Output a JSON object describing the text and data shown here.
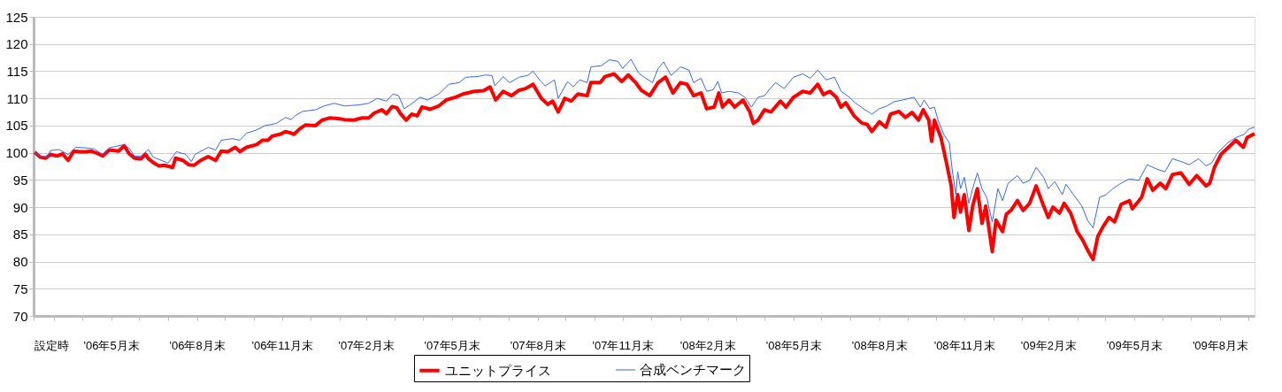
{
  "chart_data": {
    "type": "line",
    "xlim": [
      "2006-03-09",
      "2009-10-07"
    ],
    "xticks": [
      {
        "value": "2006-03-09",
        "label": "設定時"
      },
      {
        "value": "2006-03-31",
        "label": null
      },
      {
        "value": "2006-04-30",
        "label": null
      },
      {
        "value": "2006-05-31",
        "label": "'06年5月末"
      },
      {
        "value": "2006-06-30",
        "label": null
      },
      {
        "value": "2006-07-31",
        "label": null
      },
      {
        "value": "2006-08-31",
        "label": "'06年8月末"
      },
      {
        "value": "2006-09-30",
        "label": null
      },
      {
        "value": "2006-10-31",
        "label": null
      },
      {
        "value": "2006-11-30",
        "label": "'06年11月末"
      },
      {
        "value": "2006-12-31",
        "label": null
      },
      {
        "value": "2007-01-31",
        "label": null
      },
      {
        "value": "2007-02-28",
        "label": "'07年2月末"
      },
      {
        "value": "2007-03-31",
        "label": null
      },
      {
        "value": "2007-04-30",
        "label": null
      },
      {
        "value": "2007-05-31",
        "label": "'07年5月末"
      },
      {
        "value": "2007-06-30",
        "label": null
      },
      {
        "value": "2007-07-31",
        "label": null
      },
      {
        "value": "2007-08-31",
        "label": "'07年8月末"
      },
      {
        "value": "2007-09-30",
        "label": null
      },
      {
        "value": "2007-10-31",
        "label": null
      },
      {
        "value": "2007-11-30",
        "label": "'07年11月末"
      },
      {
        "value": "2007-12-31",
        "label": null
      },
      {
        "value": "2008-01-31",
        "label": null
      },
      {
        "value": "2008-02-29",
        "label": "'08年2月末"
      },
      {
        "value": "2008-03-31",
        "label": null
      },
      {
        "value": "2008-04-30",
        "label": null
      },
      {
        "value": "2008-05-31",
        "label": "'08年5月末"
      },
      {
        "value": "2008-06-30",
        "label": null
      },
      {
        "value": "2008-07-31",
        "label": null
      },
      {
        "value": "2008-08-31",
        "label": "'08年8月末"
      },
      {
        "value": "2008-09-30",
        "label": null
      },
      {
        "value": "2008-10-31",
        "label": null
      },
      {
        "value": "2008-11-30",
        "label": "'08年11月末"
      },
      {
        "value": "2008-12-31",
        "label": null
      },
      {
        "value": "2009-01-31",
        "label": null
      },
      {
        "value": "2009-02-28",
        "label": "'09年2月末"
      },
      {
        "value": "2009-03-31",
        "label": null
      },
      {
        "value": "2009-04-30",
        "label": null
      },
      {
        "value": "2009-05-31",
        "label": "'09年5月末"
      },
      {
        "value": "2009-06-30",
        "label": null
      },
      {
        "value": "2009-07-31",
        "label": null
      },
      {
        "value": "2009-08-31",
        "label": "'09年8月末"
      },
      {
        "value": "2009-09-30",
        "label": null
      }
    ],
    "ylim": [
      70,
      125
    ],
    "yticks": [
      70,
      75,
      80,
      85,
      90,
      95,
      100,
      105,
      110,
      115,
      120,
      125
    ],
    "grid": "y",
    "legend": "bottom",
    "series": [
      {
        "name": "ユニットプライス",
        "color": "#ff0000",
        "x": [
          "2006-03-10",
          "2006-03-16",
          "2006-03-22",
          "2006-03-27",
          "2006-04-03",
          "2006-04-09",
          "2006-04-15",
          "2006-04-21",
          "2006-04-28",
          "2006-05-04",
          "2006-05-10",
          "2006-05-16",
          "2006-05-22",
          "2006-05-29",
          "2006-06-08",
          "2006-06-14",
          "2006-06-19",
          "2006-06-25",
          "2006-07-02",
          "2006-07-07",
          "2006-07-10",
          "2006-07-16",
          "2006-07-21",
          "2006-07-27",
          "2006-08-05",
          "2006-08-08",
          "2006-08-16",
          "2006-08-22",
          "2006-08-28",
          "2006-09-04",
          "2006-09-12",
          "2006-09-20",
          "2006-09-26",
          "2006-10-03",
          "2006-10-11",
          "2006-10-16",
          "2006-10-23",
          "2006-11-03",
          "2006-11-09",
          "2006-11-15",
          "2006-11-20",
          "2006-11-28",
          "2006-12-04",
          "2006-12-10",
          "2006-12-13",
          "2006-12-19",
          "2006-12-25",
          "2007-01-05",
          "2007-01-12",
          "2007-01-20",
          "2007-01-29",
          "2007-02-05",
          "2007-02-15",
          "2007-02-24",
          "2007-03-03",
          "2007-03-09",
          "2007-03-17",
          "2007-03-22",
          "2007-03-28",
          "2007-04-02",
          "2007-04-06",
          "2007-04-12",
          "2007-04-18",
          "2007-04-24",
          "2007-04-29",
          "2007-05-08",
          "2007-05-17",
          "2007-05-25",
          "2007-06-04",
          "2007-06-12",
          "2007-06-24",
          "2007-07-04",
          "2007-07-11",
          "2007-07-17",
          "2007-07-25",
          "2007-08-03",
          "2007-08-11",
          "2007-08-18",
          "2007-08-26",
          "2007-09-04",
          "2007-09-11",
          "2007-09-16",
          "2007-09-22",
          "2007-09-29",
          "2007-10-06",
          "2007-10-13",
          "2007-10-23",
          "2007-10-27",
          "2007-11-06",
          "2007-11-11",
          "2007-11-21",
          "2007-11-29",
          "2007-12-06",
          "2007-12-14",
          "2007-12-20",
          "2007-12-29",
          "2008-01-07",
          "2008-01-15",
          "2008-01-23",
          "2008-01-31",
          "2008-02-07",
          "2008-02-14",
          "2008-02-22",
          "2008-02-28",
          "2008-03-07",
          "2008-03-12",
          "2008-03-16",
          "2008-03-23",
          "2008-03-29",
          "2008-04-07",
          "2008-04-14",
          "2008-04-18",
          "2008-04-23",
          "2008-04-30",
          "2008-05-07",
          "2008-05-17",
          "2008-05-23",
          "2008-05-31",
          "2008-06-10",
          "2008-06-18",
          "2008-06-26",
          "2008-07-02",
          "2008-07-09",
          "2008-07-16",
          "2008-07-21",
          "2008-07-26",
          "2008-08-04",
          "2008-08-12",
          "2008-08-18",
          "2008-08-23",
          "2008-08-31",
          "2008-09-07",
          "2008-09-12",
          "2008-09-21",
          "2008-09-28",
          "2008-10-05",
          "2008-10-12",
          "2008-10-17",
          "2008-10-23",
          "2008-10-26",
          "2008-10-29",
          "2008-11-05",
          "2008-11-11",
          "2008-11-16",
          "2008-11-19",
          "2008-11-23",
          "2008-11-26",
          "2008-11-30",
          "2008-12-05",
          "2008-12-09",
          "2008-12-14",
          "2008-12-19",
          "2008-12-23",
          "2008-12-30",
          "2009-01-03",
          "2009-01-10",
          "2009-01-14",
          "2009-01-19",
          "2009-01-26",
          "2009-02-01",
          "2009-02-08",
          "2009-02-15",
          "2009-02-23",
          "2009-02-28",
          "2009-03-05",
          "2009-03-12",
          "2009-03-17",
          "2009-03-24",
          "2009-03-31",
          "2009-04-06",
          "2009-04-12",
          "2009-04-17",
          "2009-04-22",
          "2009-04-28",
          "2009-05-04",
          "2009-05-10",
          "2009-05-17",
          "2009-05-26",
          "2009-05-29",
          "2009-06-08",
          "2009-06-14",
          "2009-06-20",
          "2009-06-28",
          "2009-07-04",
          "2009-07-11",
          "2009-07-20",
          "2009-07-29",
          "2009-08-06",
          "2009-08-16",
          "2009-08-20",
          "2009-08-25",
          "2009-09-01",
          "2009-09-09",
          "2009-09-17",
          "2009-09-25",
          "2009-09-29",
          "2009-10-07"
        ],
        "values": [
          100.1,
          99.2,
          99.0,
          99.7,
          99.4,
          99.8,
          98.6,
          100.3,
          100.2,
          100.2,
          100.3,
          99.9,
          99.4,
          100.5,
          100.3,
          101.3,
          99.9,
          99.0,
          98.9,
          99.7,
          98.9,
          98.1,
          97.6,
          97.7,
          97.3,
          99.0,
          98.6,
          97.8,
          97.7,
          98.6,
          99.3,
          98.6,
          100.3,
          100.2,
          101.0,
          100.2,
          101.0,
          101.5,
          102.3,
          102.3,
          103.1,
          103.4,
          103.9,
          103.6,
          103.4,
          104.4,
          105.1,
          105.0,
          106.0,
          106.4,
          106.3,
          106.1,
          106.0,
          106.4,
          106.4,
          107.3,
          107.9,
          107.2,
          108.5,
          108.3,
          107.2,
          106.0,
          107.1,
          106.8,
          108.4,
          108.0,
          108.6,
          109.7,
          110.2,
          110.8,
          111.3,
          111.4,
          112.1,
          109.7,
          111.3,
          110.5,
          111.5,
          111.8,
          112.6,
          110.0,
          108.9,
          109.5,
          107.5,
          110.0,
          109.5,
          110.8,
          110.5,
          112.9,
          112.9,
          114.0,
          114.5,
          113.1,
          114.3,
          112.9,
          111.5,
          110.5,
          112.9,
          113.9,
          111.0,
          112.9,
          112.6,
          110.5,
          111.0,
          108.1,
          108.4,
          111.0,
          108.4,
          109.7,
          108.4,
          109.7,
          107.6,
          105.4,
          106.0,
          107.9,
          107.5,
          109.5,
          108.4,
          110.2,
          111.3,
          111.0,
          112.6,
          110.7,
          111.3,
          110.2,
          108.4,
          109.2,
          106.8,
          105.5,
          105.2,
          103.9,
          105.7,
          104.7,
          107.1,
          107.6,
          106.5,
          107.4,
          106.0,
          107.9,
          106.0,
          102.1,
          106.0,
          102.8,
          98.1,
          93.9,
          88.1,
          92.3,
          89.1,
          92.3,
          85.7,
          90.2,
          93.4,
          87.0,
          90.2,
          81.8,
          87.6,
          85.5,
          88.7,
          89.4,
          91.2,
          89.4,
          90.7,
          93.9,
          90.2,
          88.1,
          90.0,
          88.9,
          90.7,
          88.9,
          85.5,
          83.9,
          81.8,
          80.4,
          84.6,
          86.5,
          88.1,
          87.3,
          90.5,
          91.2,
          89.7,
          91.8,
          95.2,
          93.1,
          94.4,
          93.4,
          96.0,
          96.3,
          94.2,
          95.8,
          93.9,
          94.4,
          97.3,
          99.7,
          101.0,
          102.3,
          101.0,
          102.8,
          103.5
        ]
      },
      {
        "name": "合成ベンチマーク",
        "color": "#3366ff",
        "x": [
          "2006-03-10",
          "2006-03-17",
          "2006-03-24",
          "2006-03-27",
          "2006-04-05",
          "2006-04-15",
          "2006-04-23",
          "2006-05-04",
          "2006-05-13",
          "2006-05-22",
          "2006-05-29",
          "2006-06-14",
          "2006-06-20",
          "2006-06-25",
          "2006-07-02",
          "2006-07-10",
          "2006-07-15",
          "2006-07-21",
          "2006-07-31",
          "2006-08-09",
          "2006-08-19",
          "2006-08-25",
          "2006-08-29",
          "2006-09-12",
          "2006-09-20",
          "2006-09-26",
          "2006-10-08",
          "2006-10-16",
          "2006-10-23",
          "2006-11-03",
          "2006-11-12",
          "2006-11-24",
          "2006-12-04",
          "2006-12-10",
          "2006-12-14",
          "2006-12-22",
          "2007-01-05",
          "2007-01-14",
          "2007-01-25",
          "2007-02-05",
          "2007-02-21",
          "2007-03-03",
          "2007-03-12",
          "2007-03-22",
          "2007-03-29",
          "2007-04-04",
          "2007-04-10",
          "2007-04-17",
          "2007-04-27",
          "2007-05-05",
          "2007-05-17",
          "2007-05-28",
          "2007-06-08",
          "2007-06-15",
          "2007-06-27",
          "2007-07-06",
          "2007-07-13",
          "2007-07-16",
          "2007-07-25",
          "2007-08-01",
          "2007-08-11",
          "2007-08-20",
          "2007-08-26",
          "2007-09-02",
          "2007-09-08",
          "2007-09-18",
          "2007-09-22",
          "2007-10-02",
          "2007-10-08",
          "2007-10-15",
          "2007-10-23",
          "2007-10-27",
          "2007-11-07",
          "2007-11-16",
          "2007-11-25",
          "2007-11-30",
          "2007-12-09",
          "2007-12-17",
          "2007-12-23",
          "2008-01-01",
          "2008-01-07",
          "2008-01-13",
          "2008-01-21",
          "2008-01-31",
          "2008-02-09",
          "2008-02-14",
          "2008-02-22",
          "2008-02-28",
          "2008-03-06",
          "2008-03-11",
          "2008-03-15",
          "2008-03-23",
          "2008-04-02",
          "2008-04-09",
          "2008-04-16",
          "2008-04-23",
          "2008-04-30",
          "2008-05-06",
          "2008-05-12",
          "2008-05-21",
          "2008-05-31",
          "2008-06-10",
          "2008-06-18",
          "2008-06-26",
          "2008-07-05",
          "2008-07-14",
          "2008-07-21",
          "2008-07-30",
          "2008-08-05",
          "2008-08-14",
          "2008-08-23",
          "2008-08-31",
          "2008-09-08",
          "2008-09-16",
          "2008-09-25",
          "2008-10-07",
          "2008-10-14",
          "2008-10-18",
          "2008-10-24",
          "2008-10-29",
          "2008-11-02",
          "2008-11-08",
          "2008-11-14",
          "2008-11-17",
          "2008-11-21",
          "2008-11-23",
          "2008-11-26",
          "2008-11-30",
          "2008-12-05",
          "2008-12-09",
          "2008-12-14",
          "2008-12-19",
          "2008-12-24",
          "2008-12-30",
          "2009-01-05",
          "2009-01-10",
          "2009-01-16",
          "2009-01-26",
          "2009-02-01",
          "2009-02-08",
          "2009-02-15",
          "2009-02-23",
          "2009-02-28",
          "2009-03-07",
          "2009-03-15",
          "2009-03-19",
          "2009-03-27",
          "2009-04-05",
          "2009-04-11",
          "2009-04-17",
          "2009-04-24",
          "2009-05-01",
          "2009-05-08",
          "2009-05-17",
          "2009-05-26",
          "2009-06-05",
          "2009-06-14",
          "2009-06-24",
          "2009-07-03",
          "2009-07-11",
          "2009-07-20",
          "2009-07-29",
          "2009-08-08",
          "2009-08-16",
          "2009-08-22",
          "2009-08-28",
          "2009-09-08",
          "2009-09-17",
          "2009-09-26",
          "2009-10-01",
          "2009-10-07"
        ],
        "values": [
          100.1,
          99.3,
          99.3,
          100.4,
          100.6,
          99.7,
          101.0,
          100.9,
          100.7,
          99.7,
          100.9,
          101.5,
          100.7,
          99.4,
          99.4,
          100.6,
          99.2,
          98.8,
          98.1,
          100.2,
          99.7,
          98.4,
          99.7,
          101.0,
          100.5,
          102.3,
          102.6,
          102.3,
          103.6,
          104.2,
          105.0,
          105.4,
          106.5,
          106.1,
          106.8,
          107.6,
          107.9,
          108.6,
          109.1,
          108.6,
          108.8,
          109.1,
          110.0,
          109.5,
          110.8,
          110.5,
          108.1,
          108.9,
          110.2,
          109.7,
          110.8,
          112.6,
          112.9,
          113.9,
          114.0,
          114.3,
          114.2,
          112.3,
          114.0,
          112.9,
          113.9,
          114.2,
          115.0,
          113.4,
          112.3,
          113.4,
          110.0,
          113.1,
          112.1,
          113.4,
          112.9,
          115.8,
          116.0,
          117.1,
          116.8,
          115.5,
          117.2,
          114.7,
          113.9,
          112.9,
          115.5,
          116.7,
          114.2,
          115.8,
          115.2,
          112.9,
          113.7,
          111.3,
          111.6,
          113.1,
          111.0,
          111.3,
          111.0,
          110.2,
          108.4,
          110.2,
          110.5,
          111.8,
          112.9,
          111.8,
          113.9,
          114.5,
          113.7,
          115.2,
          113.4,
          113.9,
          111.3,
          110.2,
          109.2,
          108.1,
          107.1,
          108.1,
          108.6,
          109.4,
          109.7,
          110.2,
          108.4,
          109.7,
          108.1,
          108.4,
          106.0,
          103.4,
          101.8,
          97.0,
          92.3,
          96.5,
          93.4,
          95.5,
          90.7,
          93.4,
          96.3,
          93.4,
          91.8,
          87.3,
          93.4,
          91.2,
          94.4,
          95.8,
          94.4,
          94.9,
          97.3,
          95.5,
          93.4,
          94.7,
          92.3,
          94.2,
          92.3,
          90.2,
          87.6,
          86.2,
          91.8,
          92.3,
          93.4,
          94.4,
          95.2,
          94.9,
          97.8,
          97.0,
          96.5,
          98.9,
          98.4,
          97.8,
          98.9,
          97.6,
          98.1,
          99.9,
          101.8,
          102.8,
          103.4,
          104.4,
          104.7
        ]
      }
    ]
  }
}
